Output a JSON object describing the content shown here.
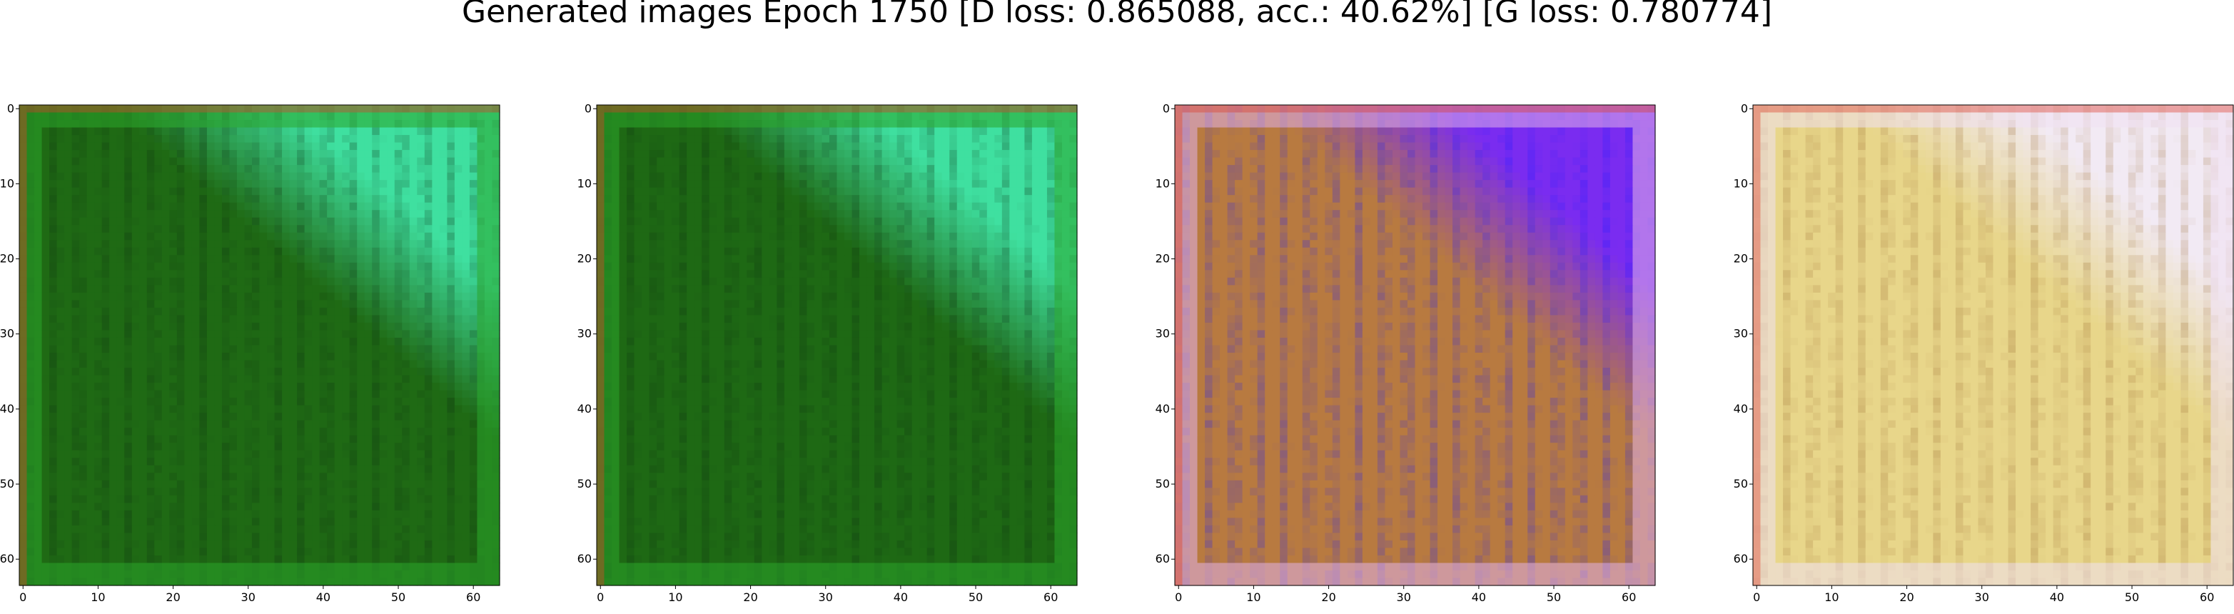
{
  "title": "Generated images Epoch 1750 [D loss: 0.865088, acc.: 40.62%] [G loss: 0.780774]",
  "x_ticks": [
    "0",
    "10",
    "20",
    "30",
    "40",
    "50",
    "60"
  ],
  "y_ticks": [
    "0",
    "10",
    "20",
    "30",
    "40",
    "50",
    "60"
  ],
  "panels": [
    {
      "id": "sample-1",
      "palette": "green",
      "base": "#1f6a14",
      "top": "#3fe0a0",
      "accent": "#0a2a10",
      "frame": "#2aa52a"
    },
    {
      "id": "sample-2",
      "palette": "green",
      "base": "#1e6914",
      "top": "#3fe0a0",
      "accent": "#0a2a10",
      "frame": "#2aa52a"
    },
    {
      "id": "sample-3",
      "palette": "purple-orange",
      "base": "#b87a40",
      "top": "#7a2cf0",
      "accent": "#1a1aff",
      "frame": "#e0b0e8"
    },
    {
      "id": "sample-4",
      "palette": "yellow",
      "base": "#e8d68a",
      "top": "#f2eaf4",
      "accent": "#9a6a30",
      "frame": "#f0e0f2"
    }
  ]
}
